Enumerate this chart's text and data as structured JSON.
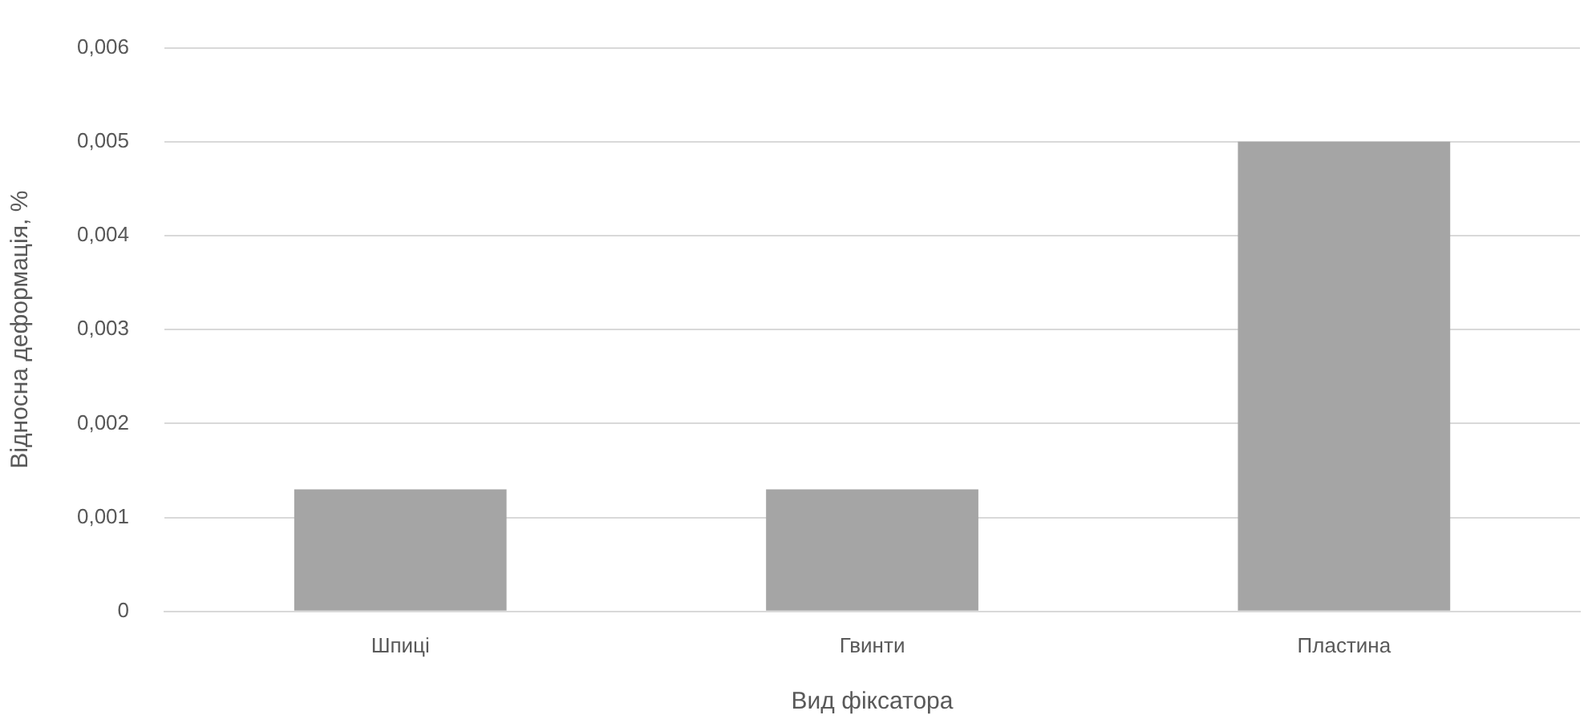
{
  "chart_data": {
    "type": "bar",
    "xlabel": "Вид фіксатора",
    "ylabel": "Відносна деформація, %",
    "categories": [
      "Шпиці",
      "Гвинти",
      "Пластина"
    ],
    "series": [
      {
        "color": "#a5a5a5",
        "values": [
          0.0013,
          0.0013,
          0.005
        ]
      }
    ],
    "ylim": [
      0,
      0.006
    ],
    "yticks": [
      {
        "value": 0,
        "label": "0"
      },
      {
        "value": 0.001,
        "label": "0,001"
      },
      {
        "value": 0.002,
        "label": "0,002"
      },
      {
        "value": 0.003,
        "label": "0,003"
      },
      {
        "value": 0.004,
        "label": "0,004"
      },
      {
        "value": 0.005,
        "label": "0,005"
      },
      {
        "value": 0.006,
        "label": "0,006"
      }
    ],
    "grid": "y",
    "legend": false
  }
}
